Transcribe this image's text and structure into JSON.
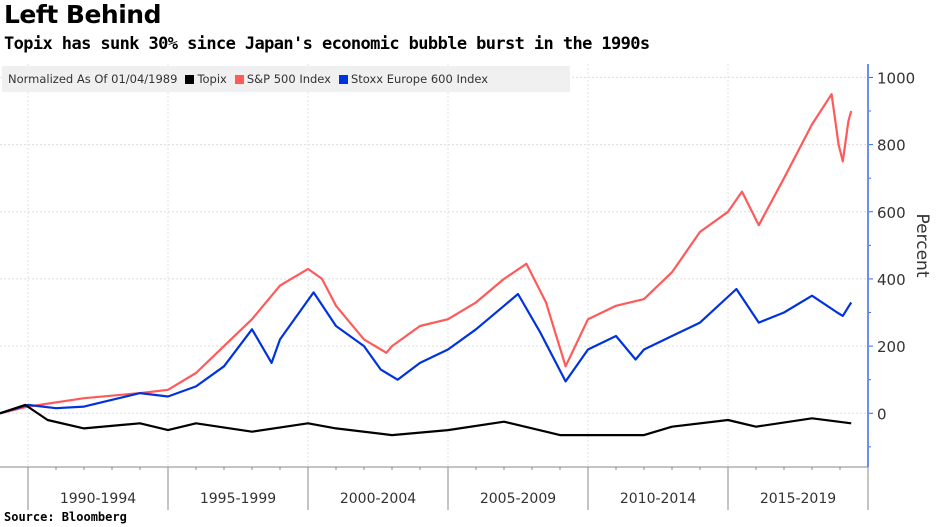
{
  "chart_data": {
    "type": "line",
    "title": "Left Behind",
    "subtitle": "Topix has sunk 30% since Japan's economic bubble burst in the 1990s",
    "legend_note": "Normalized As Of 01/04/1989",
    "legend_placement": "top-left",
    "ylabel": "Percent",
    "ylim": [
      -160,
      1040
    ],
    "yticks": [
      0,
      200,
      400,
      600,
      800,
      1000
    ],
    "xlim": [
      1989,
      2020
    ],
    "x_categories": [
      "1990-1994",
      "1995-1999",
      "2000-2004",
      "2005-2009",
      "2010-2014",
      "2015-2019"
    ],
    "grid": true,
    "source": "Source: Bloomberg",
    "series": [
      {
        "name": "Topix",
        "color": "#000000",
        "x": [
          1989,
          1989.9,
          1990.7,
          1992,
          1994,
          1995,
          1996,
          1998,
          2000,
          2001,
          2003,
          2005,
          2007,
          2008.5,
          2009,
          2012,
          2013,
          2015,
          2016,
          2018,
          2019.4
        ],
        "y": [
          0,
          25,
          -20,
          -45,
          -30,
          -50,
          -30,
          -55,
          -30,
          -45,
          -65,
          -50,
          -25,
          -55,
          -65,
          -65,
          -40,
          -20,
          -40,
          -15,
          -30
        ]
      },
      {
        "name": "S&P 500 Index",
        "color": "#ff5a5a",
        "x": [
          1989,
          1990,
          1992,
          1994,
          1995,
          1996,
          1997,
          1998,
          1999,
          2000,
          2000.5,
          2001,
          2002,
          2002.8,
          2003,
          2004,
          2005,
          2006,
          2007,
          2007.8,
          2008.5,
          2009.2,
          2010,
          2011,
          2012,
          2013,
          2014,
          2015,
          2015.5,
          2016.1,
          2017,
          2018,
          2018.7,
          2018.95,
          2019.1,
          2019.3,
          2019.4
        ],
        "y": [
          0,
          20,
          45,
          60,
          70,
          120,
          200,
          280,
          380,
          430,
          400,
          320,
          220,
          180,
          200,
          260,
          280,
          330,
          400,
          445,
          330,
          140,
          280,
          320,
          340,
          420,
          540,
          600,
          660,
          560,
          700,
          860,
          950,
          800,
          750,
          870,
          900
        ]
      },
      {
        "name": "Stoxx Europe 600 Index",
        "color": "#0033dd",
        "x": [
          1989,
          1990,
          1991,
          1992,
          1993,
          1994,
          1995,
          1996,
          1997,
          1998,
          1998.7,
          1999,
          2000.2,
          2001,
          2002,
          2002.6,
          2003.2,
          2004,
          2005,
          2006,
          2007,
          2007.5,
          2008.3,
          2009.2,
          2010,
          2011,
          2011.7,
          2012,
          2013,
          2014,
          2015.3,
          2016.1,
          2017,
          2018,
          2018.9,
          2019.1,
          2019.4
        ],
        "y": [
          0,
          25,
          15,
          20,
          40,
          60,
          50,
          80,
          140,
          250,
          150,
          220,
          360,
          260,
          200,
          130,
          100,
          150,
          190,
          250,
          320,
          355,
          240,
          95,
          190,
          230,
          160,
          190,
          230,
          270,
          370,
          270,
          300,
          350,
          300,
          290,
          330
        ]
      }
    ]
  }
}
